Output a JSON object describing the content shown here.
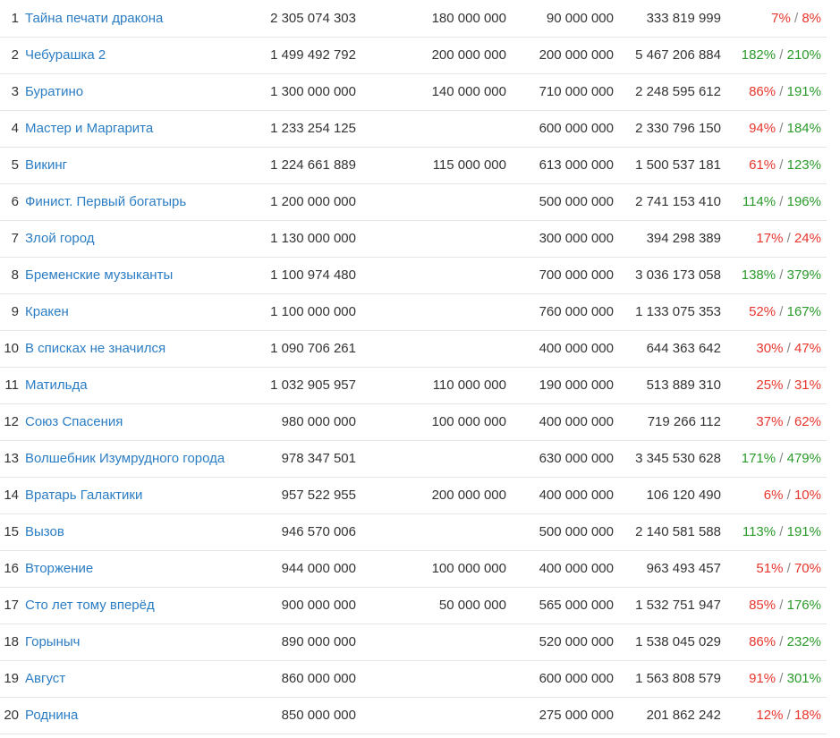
{
  "colors": {
    "link": "#2b7dc4",
    "positive": "#2a9a2a",
    "negative": "#e8352d"
  },
  "rows": [
    {
      "rank": "1",
      "title": "Тайна печати дракона",
      "total": "2 305 074 303",
      "budget_a": "180 000 000",
      "budget_b": "90 000 000",
      "gross": "333 819 999",
      "r1": "7%",
      "r1_ok": false,
      "r2": "8%",
      "r2_ok": false
    },
    {
      "rank": "2",
      "title": "Чебурашка 2",
      "total": "1 499 492 792",
      "budget_a": "200 000 000",
      "budget_b": "200 000 000",
      "gross": "5 467 206 884",
      "r1": "182%",
      "r1_ok": true,
      "r2": "210%",
      "r2_ok": true
    },
    {
      "rank": "3",
      "title": "Буратино",
      "total": "1 300 000 000",
      "budget_a": "140 000 000",
      "budget_b": "710 000 000",
      "gross": "2 248 595 612",
      "r1": "86%",
      "r1_ok": false,
      "r2": "191%",
      "r2_ok": true
    },
    {
      "rank": "4",
      "title": "Мастер и Маргарита",
      "total": "1 233 254 125",
      "budget_a": "",
      "budget_b": "600 000 000",
      "gross": "2 330 796 150",
      "r1": "94%",
      "r1_ok": false,
      "r2": "184%",
      "r2_ok": true
    },
    {
      "rank": "5",
      "title": "Викинг",
      "total": "1 224 661 889",
      "budget_a": "115 000 000",
      "budget_b": "613 000 000",
      "gross": "1 500 537 181",
      "r1": "61%",
      "r1_ok": false,
      "r2": "123%",
      "r2_ok": true
    },
    {
      "rank": "6",
      "title": "Финист. Первый богатырь",
      "total": "1 200 000 000",
      "budget_a": "",
      "budget_b": "500 000 000",
      "gross": "2 741 153 410",
      "r1": "114%",
      "r1_ok": true,
      "r2": "196%",
      "r2_ok": true
    },
    {
      "rank": "7",
      "title": "Злой город",
      "total": "1 130 000 000",
      "budget_a": "",
      "budget_b": "300 000 000",
      "gross": "394 298 389",
      "r1": "17%",
      "r1_ok": false,
      "r2": "24%",
      "r2_ok": false
    },
    {
      "rank": "8",
      "title": "Бременские музыканты",
      "total": "1 100 974 480",
      "budget_a": "",
      "budget_b": "700 000 000",
      "gross": "3 036 173 058",
      "r1": "138%",
      "r1_ok": true,
      "r2": "379%",
      "r2_ok": true
    },
    {
      "rank": "9",
      "title": "Кракен",
      "total": "1 100 000 000",
      "budget_a": "",
      "budget_b": "760 000 000",
      "gross": "1 133 075 353",
      "r1": "52%",
      "r1_ok": false,
      "r2": "167%",
      "r2_ok": true
    },
    {
      "rank": "10",
      "title": "В списках не значился",
      "total": "1 090 706 261",
      "budget_a": "",
      "budget_b": "400 000 000",
      "gross": "644 363 642",
      "r1": "30%",
      "r1_ok": false,
      "r2": "47%",
      "r2_ok": false
    },
    {
      "rank": "11",
      "title": "Матильда",
      "total": "1 032 905 957",
      "budget_a": "110 000 000",
      "budget_b": "190 000 000",
      "gross": "513 889 310",
      "r1": "25%",
      "r1_ok": false,
      "r2": "31%",
      "r2_ok": false
    },
    {
      "rank": "12",
      "title": "Союз Спасения",
      "total": "980 000 000",
      "budget_a": "100 000 000",
      "budget_b": "400 000 000",
      "gross": "719 266 112",
      "r1": "37%",
      "r1_ok": false,
      "r2": "62%",
      "r2_ok": false
    },
    {
      "rank": "13",
      "title": "Волшебник Изумрудного города",
      "total": "978 347 501",
      "budget_a": "",
      "budget_b": "630 000 000",
      "gross": "3 345 530 628",
      "r1": "171%",
      "r1_ok": true,
      "r2": "479%",
      "r2_ok": true
    },
    {
      "rank": "14",
      "title": "Вратарь Галактики",
      "total": "957 522 955",
      "budget_a": "200 000 000",
      "budget_b": "400 000 000",
      "gross": "106 120 490",
      "r1": "6%",
      "r1_ok": false,
      "r2": "10%",
      "r2_ok": false
    },
    {
      "rank": "15",
      "title": "Вызов",
      "total": "946 570 006",
      "budget_a": "",
      "budget_b": "500 000 000",
      "gross": "2 140 581 588",
      "r1": "113%",
      "r1_ok": true,
      "r2": "191%",
      "r2_ok": true
    },
    {
      "rank": "16",
      "title": "Вторжение",
      "total": "944 000 000",
      "budget_a": "100 000 000",
      "budget_b": "400 000 000",
      "gross": "963 493 457",
      "r1": "51%",
      "r1_ok": false,
      "r2": "70%",
      "r2_ok": false
    },
    {
      "rank": "17",
      "title": "Сто лет тому вперёд",
      "total": "900 000 000",
      "budget_a": "50 000 000",
      "budget_b": "565 000 000",
      "gross": "1 532 751 947",
      "r1": "85%",
      "r1_ok": false,
      "r2": "176%",
      "r2_ok": true
    },
    {
      "rank": "18",
      "title": "Горыныч",
      "total": "890 000 000",
      "budget_a": "",
      "budget_b": "520 000 000",
      "gross": "1 538 045 029",
      "r1": "86%",
      "r1_ok": false,
      "r2": "232%",
      "r2_ok": true
    },
    {
      "rank": "19",
      "title": "Август",
      "total": "860 000 000",
      "budget_a": "",
      "budget_b": "600 000 000",
      "gross": "1 563 808 579",
      "r1": "91%",
      "r1_ok": false,
      "r2": "301%",
      "r2_ok": true
    },
    {
      "rank": "20",
      "title": "Роднина",
      "total": "850 000 000",
      "budget_a": "",
      "budget_b": "275 000 000",
      "gross": "201 862 242",
      "r1": "12%",
      "r1_ok": false,
      "r2": "18%",
      "r2_ok": false
    }
  ]
}
